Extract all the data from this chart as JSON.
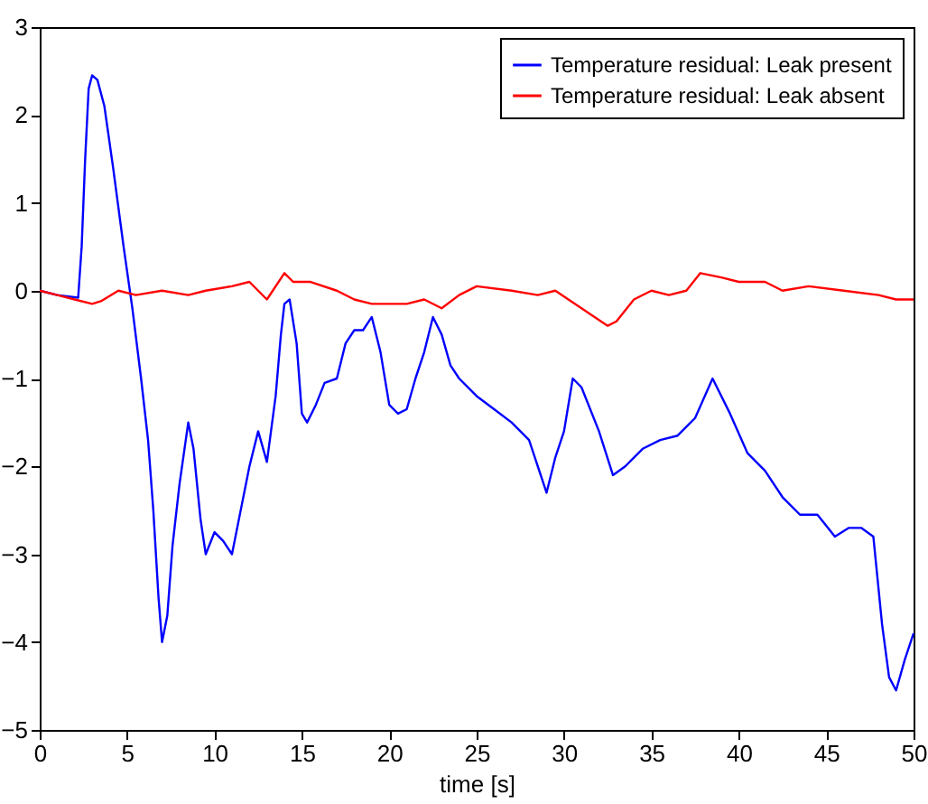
{
  "chart_data": {
    "type": "line",
    "xlabel": "time [s]",
    "xlim": [
      0,
      50
    ],
    "xticks": [
      0,
      5,
      10,
      15,
      20,
      25,
      30,
      35,
      40,
      45,
      50
    ],
    "ylim": [
      -5,
      3
    ],
    "yticks": [
      -5,
      -4,
      -3,
      -2,
      -1,
      0,
      1,
      2,
      3
    ],
    "grid": false,
    "legend": "top right",
    "marker": "none",
    "line_style": "solid",
    "series": [
      {
        "name": "Temperature residual: Leak present",
        "color": "#0000ff",
        "x": [
          0,
          1,
          2.2,
          2.4,
          2.6,
          2.8,
          3.0,
          3.3,
          3.7,
          4.2,
          4.8,
          5.3,
          5.8,
          6.2,
          6.5,
          6.8,
          7.0,
          7.3,
          7.6,
          8.0,
          8.5,
          8.8,
          9.2,
          9.5,
          10.0,
          10.5,
          11.0,
          11.5,
          12.0,
          12.5,
          13.0,
          13.5,
          13.8,
          14.0,
          14.3,
          14.7,
          15.0,
          15.3,
          15.8,
          16.3,
          17.0,
          17.5,
          18.0,
          18.5,
          19.0,
          19.5,
          20.0,
          20.5,
          21.0,
          21.5,
          22.0,
          22.5,
          23.0,
          23.5,
          24.0,
          25.0,
          26.0,
          27.0,
          28.0,
          28.5,
          29.0,
          29.5,
          30.0,
          30.5,
          31.0,
          32.0,
          32.8,
          33.5,
          34.5,
          35.5,
          36.5,
          37.5,
          38.5,
          39.5,
          40.5,
          41.5,
          42.5,
          43.5,
          44.5,
          45.5,
          46.3,
          47.0,
          47.7,
          48.2,
          48.6,
          49.0,
          49.5,
          50
        ],
        "values": [
          0,
          -0.05,
          -0.08,
          0.5,
          1.5,
          2.3,
          2.45,
          2.4,
          2.1,
          1.4,
          0.5,
          -0.2,
          -1.0,
          -1.7,
          -2.5,
          -3.5,
          -4.0,
          -3.7,
          -2.9,
          -2.2,
          -1.5,
          -1.8,
          -2.6,
          -3.0,
          -2.75,
          -2.85,
          -3.0,
          -2.5,
          -2.0,
          -1.6,
          -1.95,
          -1.2,
          -0.5,
          -0.15,
          -0.1,
          -0.6,
          -1.4,
          -1.5,
          -1.3,
          -1.05,
          -1.0,
          -0.6,
          -0.45,
          -0.45,
          -0.3,
          -0.7,
          -1.3,
          -1.4,
          -1.35,
          -1.0,
          -0.7,
          -0.3,
          -0.5,
          -0.85,
          -1.0,
          -1.2,
          -1.35,
          -1.5,
          -1.7,
          -2.0,
          -2.3,
          -1.9,
          -1.6,
          -1.0,
          -1.1,
          -1.6,
          -2.1,
          -2.0,
          -1.8,
          -1.7,
          -1.65,
          -1.45,
          -1.0,
          -1.4,
          -1.85,
          -2.05,
          -2.35,
          -2.55,
          -2.55,
          -2.8,
          -2.7,
          -2.7,
          -2.8,
          -3.8,
          -4.4,
          -4.55,
          -4.2,
          -3.9
        ]
      },
      {
        "name": "Temperature residual: Leak absent",
        "color": "#ff0000",
        "x": [
          0,
          1,
          2,
          3,
          3.5,
          4.5,
          5.5,
          7,
          8.5,
          9.5,
          11,
          12,
          13,
          14,
          14.5,
          15.5,
          17,
          18,
          19,
          20,
          21,
          22,
          23,
          24,
          25,
          27,
          28.5,
          29.5,
          31,
          32.5,
          33,
          34,
          35,
          36,
          37,
          37.8,
          39,
          40,
          41.5,
          42.5,
          44,
          46,
          48,
          49,
          50
        ],
        "values": [
          0,
          -0.05,
          -0.1,
          -0.15,
          -0.12,
          0,
          -0.05,
          0,
          -0.05,
          0,
          0.05,
          0.1,
          -0.1,
          0.2,
          0.1,
          0.1,
          0,
          -0.1,
          -0.15,
          -0.15,
          -0.15,
          -0.1,
          -0.2,
          -0.05,
          0.05,
          0,
          -0.05,
          0,
          -0.2,
          -0.4,
          -0.35,
          -0.1,
          0,
          -0.05,
          0,
          0.2,
          0.15,
          0.1,
          0.1,
          0,
          0.05,
          0,
          -0.05,
          -0.1,
          -0.1
        ]
      }
    ]
  }
}
